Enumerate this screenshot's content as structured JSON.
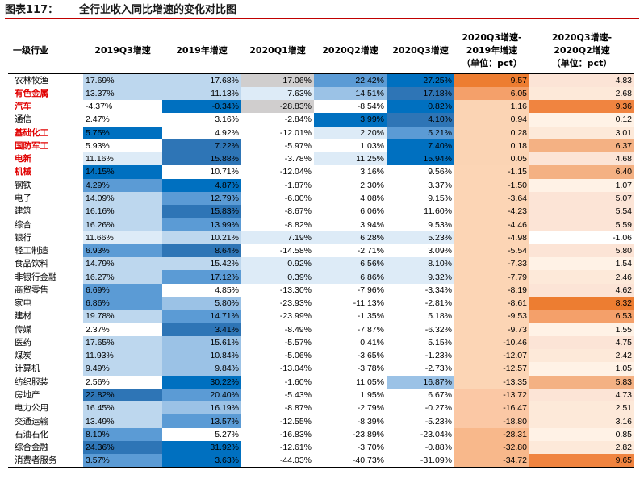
{
  "title": {
    "label": "图表117：",
    "text": "全行业收入同比增速的变化对比图"
  },
  "headers": [
    "一级行业",
    "2019Q3增速",
    "2019年增速",
    "2020Q1增速",
    "2020Q2增速",
    "2020Q3增速",
    "2020Q3增速-2019年增速（单位：pct）",
    "2020Q3增速-2020Q2增速（单位：pct）"
  ],
  "header_lines": [
    [
      "一级行业"
    ],
    [
      "2019Q3增速"
    ],
    [
      "2019年增速"
    ],
    [
      "2020Q1增速"
    ],
    [
      "2020Q2增速"
    ],
    [
      "2020Q3增速"
    ],
    [
      "2020Q3增速-",
      "2019年增速",
      "（单位：pct）"
    ],
    [
      "2020Q3增速-",
      "2020Q2增速",
      "（单位：pct）"
    ]
  ],
  "colors": {
    "highlight_industry": "#e00000",
    "title_rule": "#c00000"
  },
  "rows": [
    {
      "industry": "农林牧渔",
      "highlight": false,
      "cells": [
        "17.69%",
        "17.68%",
        "17.06%",
        "22.42%",
        "27.25%",
        "9.57",
        "4.83"
      ],
      "bg": [
        "#bdd7ee",
        "#bdd7ee",
        "#d0cece",
        "#5b9bd5",
        "#0070c0",
        "#ed7d31",
        "#fce4d6"
      ]
    },
    {
      "industry": "有色金属",
      "highlight": true,
      "cells": [
        "13.37%",
        "11.13%",
        "7.63%",
        "14.51%",
        "17.18%",
        "6.05",
        "2.68"
      ],
      "bg": [
        "#bdd7ee",
        "#bdd7ee",
        "#ddebf7",
        "#9bc2e6",
        "#2e75b6",
        "#f4a06a",
        "#fde9d9"
      ]
    },
    {
      "industry": "汽车",
      "highlight": true,
      "cells": [
        "-4.37%",
        "-0.34%",
        "-28.83%",
        "-8.54%",
        "0.82%",
        "1.16",
        "9.36"
      ],
      "bg": [
        "#ffffff",
        "#0070c0",
        "#d0cece",
        "#ffffff",
        "#0070c0",
        "#fbd4b4",
        "#f08440"
      ]
    },
    {
      "industry": "通信",
      "highlight": false,
      "cells": [
        "2.47%",
        "3.16%",
        "-2.84%",
        "3.99%",
        "4.10%",
        "0.94",
        "0.12"
      ],
      "bg": [
        "#ffffff",
        "#ffffff",
        "#ffffff",
        "#0070c0",
        "#2e75b6",
        "#fbd4b4",
        "#fff2e6"
      ]
    },
    {
      "industry": "基础化工",
      "highlight": true,
      "cells": [
        "5.75%",
        "4.92%",
        "-12.01%",
        "2.20%",
        "5.21%",
        "0.28",
        "3.01"
      ],
      "bg": [
        "#0070c0",
        "#ffffff",
        "#ffffff",
        "#ddebf7",
        "#5b9bd5",
        "#fbd4b4",
        "#fde9d9"
      ]
    },
    {
      "industry": "国防军工",
      "highlight": true,
      "cells": [
        "5.93%",
        "7.22%",
        "-5.97%",
        "1.03%",
        "7.40%",
        "0.18",
        "6.37"
      ],
      "bg": [
        "#ffffff",
        "#2e75b6",
        "#ffffff",
        "#ffffff",
        "#0070c0",
        "#fbd4b4",
        "#f4b183"
      ]
    },
    {
      "industry": "电新",
      "highlight": true,
      "cells": [
        "11.16%",
        "15.88%",
        "-3.78%",
        "11.25%",
        "15.94%",
        "0.05",
        "4.68"
      ],
      "bg": [
        "#ddebf7",
        "#2e75b6",
        "#ffffff",
        "#ddebf7",
        "#0070c0",
        "#fbd4b4",
        "#fce4d6"
      ]
    },
    {
      "industry": "机械",
      "highlight": true,
      "cells": [
        "14.15%",
        "10.71%",
        "-12.04%",
        "3.16%",
        "9.56%",
        "-1.15",
        "6.40"
      ],
      "bg": [
        "#0070c0",
        "#ffffff",
        "#ffffff",
        "#ffffff",
        "#ffffff",
        "#fcd5b5",
        "#f4b183"
      ]
    },
    {
      "industry": "钢铁",
      "highlight": false,
      "cells": [
        "4.29%",
        "4.87%",
        "-1.87%",
        "2.30%",
        "3.37%",
        "-1.50",
        "1.07"
      ],
      "bg": [
        "#5b9bd5",
        "#0070c0",
        "#ffffff",
        "#ffffff",
        "#ffffff",
        "#fcd5b5",
        "#fff2e6"
      ]
    },
    {
      "industry": "电子",
      "highlight": false,
      "cells": [
        "14.09%",
        "12.79%",
        "-6.00%",
        "4.08%",
        "9.15%",
        "-3.64",
        "5.07"
      ],
      "bg": [
        "#bdd7ee",
        "#5b9bd5",
        "#ffffff",
        "#ffffff",
        "#ffffff",
        "#fcd5b5",
        "#fce4d6"
      ]
    },
    {
      "industry": "建筑",
      "highlight": false,
      "cells": [
        "16.16%",
        "15.83%",
        "-8.67%",
        "6.06%",
        "11.60%",
        "-4.23",
        "5.54"
      ],
      "bg": [
        "#bdd7ee",
        "#2e75b6",
        "#ffffff",
        "#ffffff",
        "#ffffff",
        "#fcd5b5",
        "#fce4d6"
      ]
    },
    {
      "industry": "综合",
      "highlight": false,
      "cells": [
        "16.26%",
        "13.99%",
        "-8.82%",
        "3.94%",
        "9.53%",
        "-4.46",
        "5.59"
      ],
      "bg": [
        "#bdd7ee",
        "#5b9bd5",
        "#ffffff",
        "#ffffff",
        "#ffffff",
        "#fcd5b5",
        "#fce4d6"
      ]
    },
    {
      "industry": "银行",
      "highlight": false,
      "cells": [
        "11.66%",
        "10.21%",
        "7.19%",
        "6.28%",
        "5.23%",
        "-4.98",
        "-1.06"
      ],
      "bg": [
        "#ddebf7",
        "#bdd7ee",
        "#ddebf7",
        "#ddebf7",
        "#ddebf7",
        "#fcd5b5",
        "#ffffff"
      ]
    },
    {
      "industry": "轻工制造",
      "highlight": false,
      "cells": [
        "6.93%",
        "8.64%",
        "-14.58%",
        "-2.71%",
        "3.09%",
        "-5.54",
        "5.80"
      ],
      "bg": [
        "#5b9bd5",
        "#2e75b6",
        "#ffffff",
        "#ffffff",
        "#ffffff",
        "#fcd5b5",
        "#fce4d6"
      ]
    },
    {
      "industry": "食品饮料",
      "highlight": false,
      "cells": [
        "14.79%",
        "15.42%",
        "0.92%",
        "6.56%",
        "8.10%",
        "-7.33",
        "1.54"
      ],
      "bg": [
        "#bdd7ee",
        "#bdd7ee",
        "#ddebf7",
        "#ddebf7",
        "#ddebf7",
        "#fcd5b5",
        "#fff2e6"
      ]
    },
    {
      "industry": "非银行金融",
      "highlight": false,
      "cells": [
        "16.27%",
        "17.12%",
        "0.39%",
        "6.86%",
        "9.32%",
        "-7.79",
        "2.46"
      ],
      "bg": [
        "#bdd7ee",
        "#5b9bd5",
        "#ddebf7",
        "#ddebf7",
        "#ddebf7",
        "#fcd5b5",
        "#fde9d9"
      ]
    },
    {
      "industry": "商贸零售",
      "highlight": false,
      "cells": [
        "6.69%",
        "4.85%",
        "-13.30%",
        "-7.96%",
        "-3.34%",
        "-8.19",
        "4.62"
      ],
      "bg": [
        "#5b9bd5",
        "#ffffff",
        "#ffffff",
        "#ffffff",
        "#ffffff",
        "#fcd5b5",
        "#fce4d6"
      ]
    },
    {
      "industry": "家电",
      "highlight": false,
      "cells": [
        "6.86%",
        "5.80%",
        "-23.93%",
        "-11.13%",
        "-2.81%",
        "-8.61",
        "8.32"
      ],
      "bg": [
        "#5b9bd5",
        "#9bc2e6",
        "#ffffff",
        "#ffffff",
        "#ffffff",
        "#fcd5b5",
        "#ed7d31"
      ]
    },
    {
      "industry": "建材",
      "highlight": false,
      "cells": [
        "19.78%",
        "14.71%",
        "-23.99%",
        "-1.35%",
        "5.18%",
        "-9.53",
        "6.53"
      ],
      "bg": [
        "#bdd7ee",
        "#5b9bd5",
        "#ffffff",
        "#ffffff",
        "#ffffff",
        "#fcd5b5",
        "#f4a06a"
      ]
    },
    {
      "industry": "传媒",
      "highlight": false,
      "cells": [
        "2.37%",
        "3.41%",
        "-8.49%",
        "-7.87%",
        "-6.32%",
        "-9.73",
        "1.55"
      ],
      "bg": [
        "#ffffff",
        "#2e75b6",
        "#ffffff",
        "#ffffff",
        "#ffffff",
        "#fcd5b5",
        "#fff2e6"
      ]
    },
    {
      "industry": "医药",
      "highlight": false,
      "cells": [
        "17.65%",
        "15.61%",
        "-5.57%",
        "0.41%",
        "5.15%",
        "-10.46",
        "4.75"
      ],
      "bg": [
        "#bdd7ee",
        "#9bc2e6",
        "#ffffff",
        "#ffffff",
        "#ffffff",
        "#fcd5b5",
        "#fce4d6"
      ]
    },
    {
      "industry": "煤炭",
      "highlight": false,
      "cells": [
        "11.93%",
        "10.84%",
        "-5.06%",
        "-3.65%",
        "-1.23%",
        "-12.07",
        "2.42"
      ],
      "bg": [
        "#bdd7ee",
        "#9bc2e6",
        "#ffffff",
        "#ffffff",
        "#ffffff",
        "#fcd5b5",
        "#fde9d9"
      ]
    },
    {
      "industry": "计算机",
      "highlight": false,
      "cells": [
        "9.49%",
        "9.84%",
        "-13.04%",
        "-3.78%",
        "-2.73%",
        "-12.57",
        "1.05"
      ],
      "bg": [
        "#bdd7ee",
        "#9bc2e6",
        "#ffffff",
        "#ffffff",
        "#ffffff",
        "#fcd5b5",
        "#fff2e6"
      ]
    },
    {
      "industry": "纺织服装",
      "highlight": false,
      "cells": [
        "2.56%",
        "30.22%",
        "-1.60%",
        "11.05%",
        "16.87%",
        "-13.35",
        "5.83"
      ],
      "bg": [
        "#ffffff",
        "#0070c0",
        "#ffffff",
        "#ffffff",
        "#9bc2e6",
        "#fcd5b5",
        "#f4b183"
      ]
    },
    {
      "industry": "房地产",
      "highlight": false,
      "cells": [
        "22.82%",
        "20.40%",
        "-5.43%",
        "1.95%",
        "6.67%",
        "-13.72",
        "4.73"
      ],
      "bg": [
        "#2e75b6",
        "#5b9bd5",
        "#ffffff",
        "#ffffff",
        "#ffffff",
        "#fbc8a5",
        "#fce4d6"
      ]
    },
    {
      "industry": "电力公用",
      "highlight": false,
      "cells": [
        "16.45%",
        "16.19%",
        "-8.87%",
        "-2.79%",
        "-0.27%",
        "-16.47",
        "2.51"
      ],
      "bg": [
        "#bdd7ee",
        "#9bc2e6",
        "#ffffff",
        "#ffffff",
        "#ffffff",
        "#fbc8a5",
        "#fde9d9"
      ]
    },
    {
      "industry": "交通运输",
      "highlight": false,
      "cells": [
        "13.49%",
        "13.57%",
        "-12.55%",
        "-8.39%",
        "-5.23%",
        "-18.80",
        "3.16"
      ],
      "bg": [
        "#bdd7ee",
        "#5b9bd5",
        "#ffffff",
        "#ffffff",
        "#ffffff",
        "#fbc8a5",
        "#fde9d9"
      ]
    },
    {
      "industry": "石油石化",
      "highlight": false,
      "cells": [
        "8.10%",
        "5.27%",
        "-16.83%",
        "-23.89%",
        "-23.04%",
        "-28.31",
        "0.85"
      ],
      "bg": [
        "#5b9bd5",
        "#ffffff",
        "#ffffff",
        "#ffffff",
        "#ffffff",
        "#f8b88b",
        "#fff2e6"
      ]
    },
    {
      "industry": "综合金融",
      "highlight": false,
      "cells": [
        "24.36%",
        "31.92%",
        "-12.61%",
        "-3.70%",
        "-0.88%",
        "-32.80",
        "2.82"
      ],
      "bg": [
        "#2e75b6",
        "#0070c0",
        "#ffffff",
        "#ffffff",
        "#ffffff",
        "#f8b88b",
        "#fde9d9"
      ]
    },
    {
      "industry": "消费者服务",
      "highlight": false,
      "cells": [
        "3.57%",
        "3.63%",
        "-44.03%",
        "-40.73%",
        "-31.09%",
        "-34.72",
        "9.65"
      ],
      "bg": [
        "#5b9bd5",
        "#0070c0",
        "#ffffff",
        "#ffffff",
        "#ffffff",
        "#f8b88b",
        "#f08440"
      ]
    }
  ]
}
